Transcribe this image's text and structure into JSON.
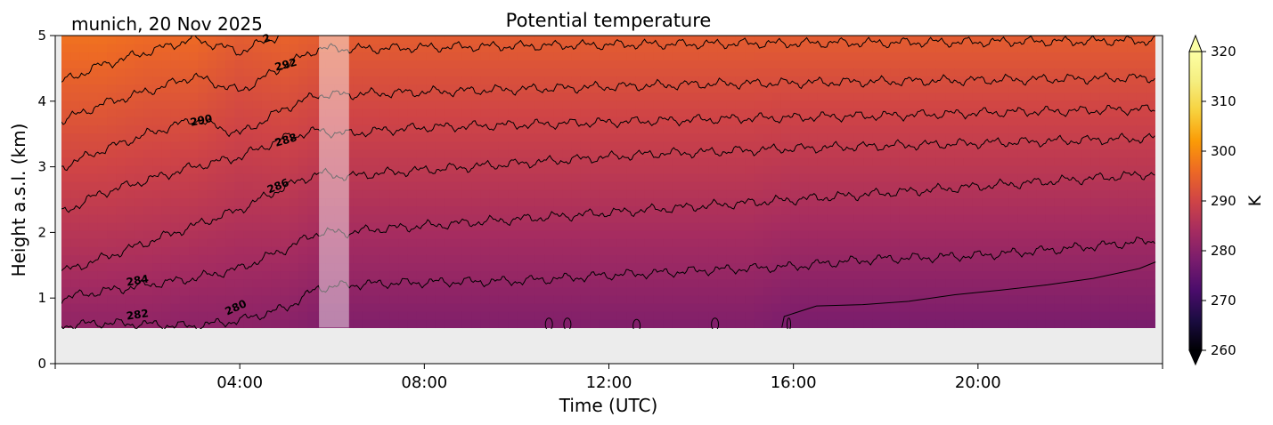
{
  "chart_data": {
    "type": "heatmap",
    "title": "Potential temperature",
    "subtitle": "munich, 20 Nov 2025",
    "xlabel": "Time (UTC)",
    "ylabel": "Height a.s.l. (km)",
    "xlim": [
      "00:00",
      "24:00"
    ],
    "ylim": [
      0,
      5
    ],
    "x_ticks": [
      "04:00",
      "08:00",
      "12:00",
      "16:00",
      "20:00"
    ],
    "y_ticks": [
      "0",
      "1",
      "2",
      "3",
      "4",
      "5"
    ],
    "colorbar": {
      "label": "K",
      "colormap": "inferno",
      "range": [
        260,
        320
      ],
      "extend": "both",
      "ticks": [
        "260",
        "270",
        "280",
        "290",
        "300",
        "310",
        "320"
      ]
    },
    "data_extent": {
      "x_start": "00:08",
      "x_end": "23:50",
      "y_bottom_km": 0.55,
      "y_top_km": 5
    },
    "gap": {
      "start": "05:43",
      "end": "06:22"
    },
    "contour_levels": [
      280,
      282,
      284,
      286,
      288,
      290,
      292,
      294
    ],
    "contour_labels": [
      {
        "text": "280",
        "time": "03:55",
        "height_km": 0.85,
        "angle_deg": -25
      },
      {
        "text": "282",
        "time": "01:47",
        "height_km": 0.74,
        "angle_deg": -8
      },
      {
        "text": "284",
        "time": "01:47",
        "height_km": 1.26,
        "angle_deg": -10
      },
      {
        "text": "286",
        "time": "04:50",
        "height_km": 2.7,
        "angle_deg": -22
      },
      {
        "text": "288",
        "time": "05:00",
        "height_km": 3.4,
        "angle_deg": -16
      },
      {
        "text": "290",
        "time": "03:10",
        "height_km": 3.7,
        "angle_deg": -12
      },
      {
        "text": "292",
        "time": "05:00",
        "height_km": 4.55,
        "angle_deg": -15
      },
      {
        "text": "2",
        "time": "04:35",
        "height_km": 4.95,
        "angle_deg": -20
      }
    ],
    "contours_km_by_hour": {
      "hours": [
        0.15,
        1,
        2,
        3,
        4,
        5,
        5.7,
        6.35,
        7,
        8,
        9,
        10,
        11,
        12,
        13,
        14,
        15,
        16,
        17,
        18,
        19,
        20,
        21,
        22,
        23,
        23.85
      ],
      "282": [
        0.58,
        0.62,
        0.6,
        0.57,
        0.66,
        0.85,
        1.15,
        1.2,
        1.22,
        1.24,
        1.25,
        1.26,
        1.3,
        1.35,
        1.38,
        1.42,
        1.45,
        1.48,
        1.55,
        1.6,
        1.62,
        1.65,
        1.7,
        1.76,
        1.82,
        1.88
      ],
      "284": [
        1.0,
        1.1,
        1.2,
        1.3,
        1.45,
        1.75,
        2.0,
        2.0,
        2.05,
        2.1,
        2.15,
        2.2,
        2.25,
        2.3,
        2.35,
        2.4,
        2.45,
        2.5,
        2.55,
        2.6,
        2.65,
        2.7,
        2.75,
        2.8,
        2.85,
        2.9
      ],
      "286": [
        1.4,
        1.6,
        1.85,
        2.1,
        2.35,
        2.7,
        2.9,
        2.85,
        2.9,
        2.95,
        3.0,
        3.05,
        3.1,
        3.15,
        3.2,
        3.22,
        3.25,
        3.28,
        3.3,
        3.32,
        3.34,
        3.36,
        3.38,
        3.4,
        3.42,
        3.44
      ],
      "288": [
        2.3,
        2.6,
        2.8,
        3.0,
        3.15,
        3.45,
        3.55,
        3.5,
        3.55,
        3.6,
        3.62,
        3.64,
        3.66,
        3.68,
        3.7,
        3.72,
        3.74,
        3.75,
        3.77,
        3.78,
        3.8,
        3.82,
        3.84,
        3.85,
        3.87,
        3.88
      ],
      "290": [
        3.0,
        3.25,
        3.5,
        3.72,
        3.5,
        3.9,
        4.1,
        4.1,
        4.12,
        4.14,
        4.16,
        4.18,
        4.2,
        4.22,
        4.24,
        4.26,
        4.27,
        4.28,
        4.29,
        4.3,
        4.31,
        4.32,
        4.33,
        4.34,
        4.35,
        4.36
      ],
      "292": [
        3.7,
        3.95,
        4.15,
        4.38,
        4.15,
        4.55,
        4.8,
        4.8,
        4.8,
        4.82,
        4.83,
        4.84,
        4.85,
        4.86,
        4.87,
        4.87,
        4.88,
        4.88,
        4.89,
        4.89,
        4.9,
        4.9,
        4.91,
        4.91,
        4.92,
        4.92
      ],
      "294": [
        4.3,
        4.55,
        4.75,
        4.95,
        4.75,
        5.05,
        5.2,
        5.2,
        5.2,
        5.2,
        5.2,
        5.2,
        5.2,
        5.2,
        5.2,
        5.2,
        5.2,
        5.2,
        5.2,
        5.2,
        5.2,
        5.2,
        5.2,
        5.2,
        5.2,
        5.2
      ]
    },
    "theta_surface_K": [
      281,
      281,
      281,
      280.5,
      280.5,
      280,
      279,
      279,
      279,
      279,
      279,
      279,
      279,
      279,
      279,
      279,
      279,
      278,
      278,
      278,
      278,
      278,
      278,
      278,
      278,
      278
    ],
    "theta_top_K": [
      297,
      297,
      296,
      296,
      294,
      295,
      294,
      294,
      294,
      294,
      294,
      294,
      294,
      294,
      294,
      294,
      294,
      294,
      294,
      294,
      294,
      294,
      294,
      294,
      294,
      294
    ],
    "colors": {
      "background": "#ececec",
      "contour": "#000000",
      "gap_overlay": "#ffffff"
    }
  }
}
